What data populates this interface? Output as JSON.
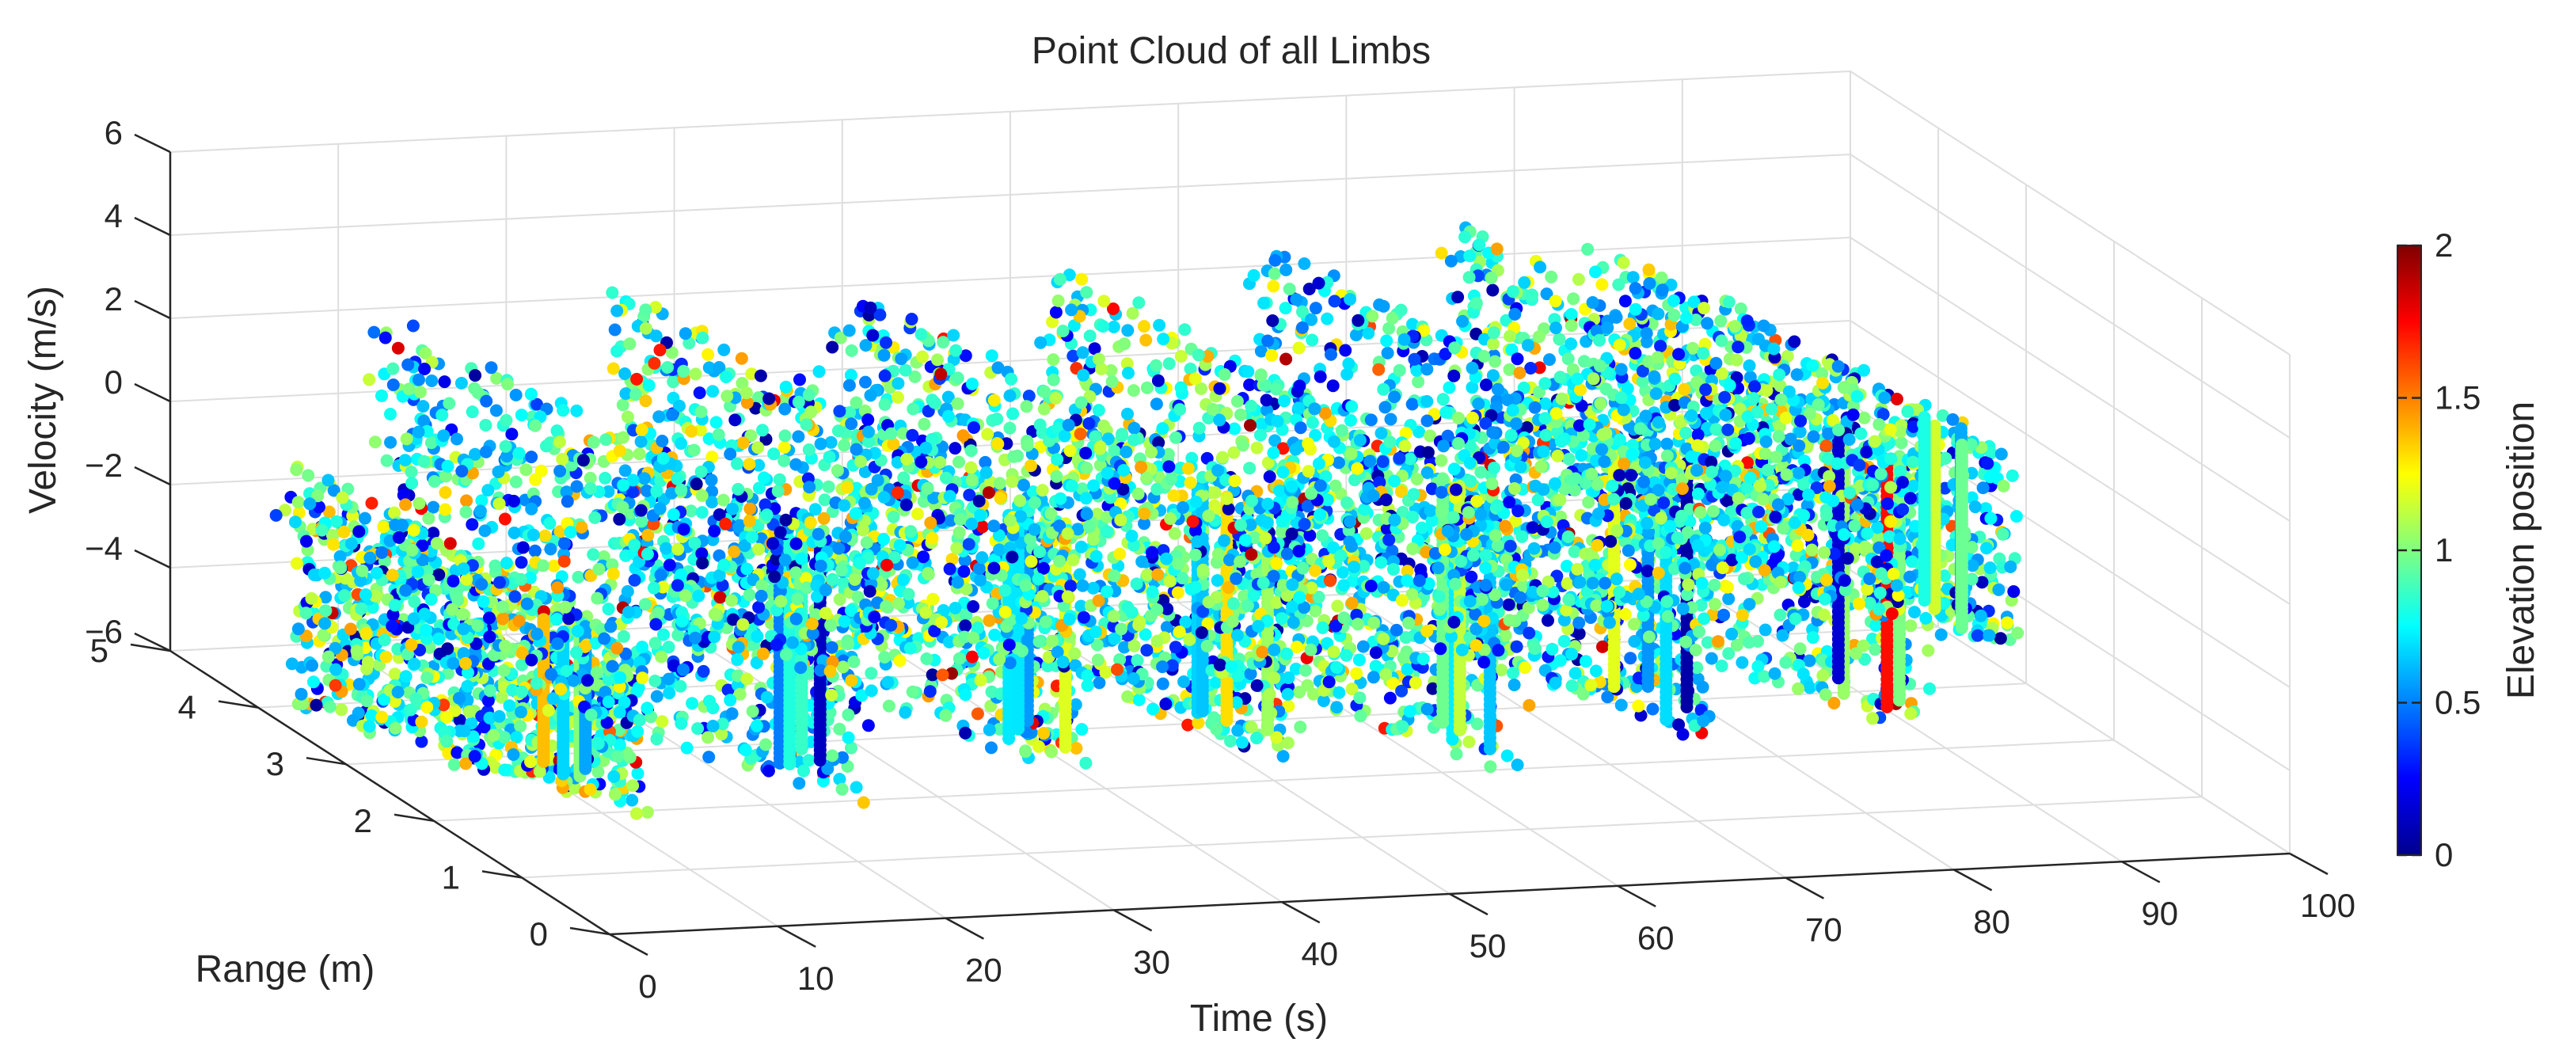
{
  "chart_data": {
    "type": "scatter",
    "projection": "3d",
    "title": "Point Cloud of all Limbs",
    "xlabel": "Time (s)",
    "ylabel": "Range (m)",
    "zlabel": "Velocity (m/s)",
    "colorbar_label": "Elevation position",
    "xlim": [
      0,
      100
    ],
    "ylim": [
      0,
      5
    ],
    "zlim": [
      -6,
      6
    ],
    "clim": [
      0,
      2
    ],
    "x_ticks": [
      "0",
      "10",
      "20",
      "30",
      "40",
      "50",
      "60",
      "70",
      "80",
      "90",
      "100"
    ],
    "y_ticks": [
      "0",
      "1",
      "2",
      "3",
      "4",
      "5"
    ],
    "z_ticks": [
      "−6",
      "−4",
      "−2",
      "0",
      "2",
      "4",
      "6"
    ],
    "colorbar_ticks": [
      "0",
      "0.5",
      "1",
      "1.5",
      "2"
    ],
    "colormap": "jet",
    "grid": true,
    "colorbar_position": "right",
    "clusters": [
      {
        "t_start": 0,
        "t_end": 12,
        "range_start": 3.5,
        "range_end": 2.0,
        "v_top": 0.5,
        "v_bottom": -5.5,
        "elevation_mean": 0.85
      },
      {
        "t_start": 10,
        "t_end": 25,
        "range_start": 4.5,
        "range_end": 2.0,
        "v_top": 2.5,
        "v_bottom": -5.5,
        "elevation_mean": 0.75
      },
      {
        "t_start": 24,
        "t_end": 38,
        "range_start": 4.5,
        "range_end": 2.0,
        "v_top": 3.0,
        "v_bottom": -5.0,
        "elevation_mean": 0.8
      },
      {
        "t_start": 37,
        "t_end": 51,
        "range_start": 4.5,
        "range_end": 2.0,
        "v_top": 3.0,
        "v_bottom": -5.0,
        "elevation_mean": 0.8
      },
      {
        "t_start": 50,
        "t_end": 64,
        "range_start": 4.5,
        "range_end": 2.0,
        "v_top": 3.0,
        "v_bottom": -5.5,
        "elevation_mean": 0.85
      },
      {
        "t_start": 62,
        "t_end": 76,
        "range_start": 4.5,
        "range_end": 2.0,
        "v_top": 3.5,
        "v_bottom": -5.0,
        "elevation_mean": 0.75
      },
      {
        "t_start": 74,
        "t_end": 88,
        "range_start": 4.5,
        "range_end": 2.0,
        "v_top": 3.5,
        "v_bottom": -5.0,
        "elevation_mean": 0.8
      },
      {
        "t_start": 82,
        "t_end": 96,
        "range_start": 4.5,
        "range_end": 2.5,
        "v_top": 3.0,
        "v_bottom": -4.0,
        "elevation_mean": 0.8
      }
    ]
  }
}
